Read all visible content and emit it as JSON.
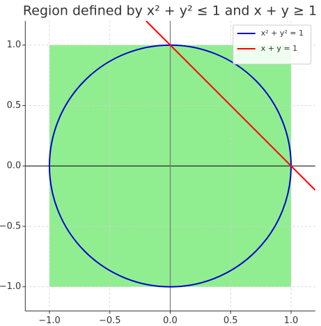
{
  "chart_data": {
    "type": "line",
    "title": "Region defined by x² + y² ≤ 1 and x + y ≥ 1",
    "xlim": [
      -1.2,
      1.2
    ],
    "ylim": [
      -1.2,
      1.2
    ],
    "xticks": [
      {
        "value": -1,
        "label": "−1.0"
      },
      {
        "value": -0.5,
        "label": "−0.5"
      },
      {
        "value": 0,
        "label": "0.0"
      },
      {
        "value": 0.5,
        "label": "0.5"
      },
      {
        "value": 1,
        "label": "1.0"
      }
    ],
    "yticks": [
      {
        "value": -1,
        "label": "−1.0"
      },
      {
        "value": -0.5,
        "label": "−0.5"
      },
      {
        "value": 0,
        "label": "0.0"
      },
      {
        "value": 0.5,
        "label": "0.5"
      },
      {
        "value": 1,
        "label": "1.0"
      }
    ],
    "grid": true,
    "legend": "upper right",
    "region": {
      "x": [
        -1,
        1
      ],
      "y": [
        -1,
        1
      ],
      "color": "#90ee90"
    },
    "hline": 0,
    "vline": 0,
    "series": [
      {
        "name": "x² + y² = 1",
        "color": "#0000cc",
        "shape": "circle",
        "center": [
          0,
          0
        ],
        "radius": 1
      },
      {
        "name": "x + y = 1",
        "color": "#ff0000",
        "x": [
          -0.2,
          1.2
        ],
        "values": [
          1.2,
          -0.2
        ]
      }
    ]
  }
}
